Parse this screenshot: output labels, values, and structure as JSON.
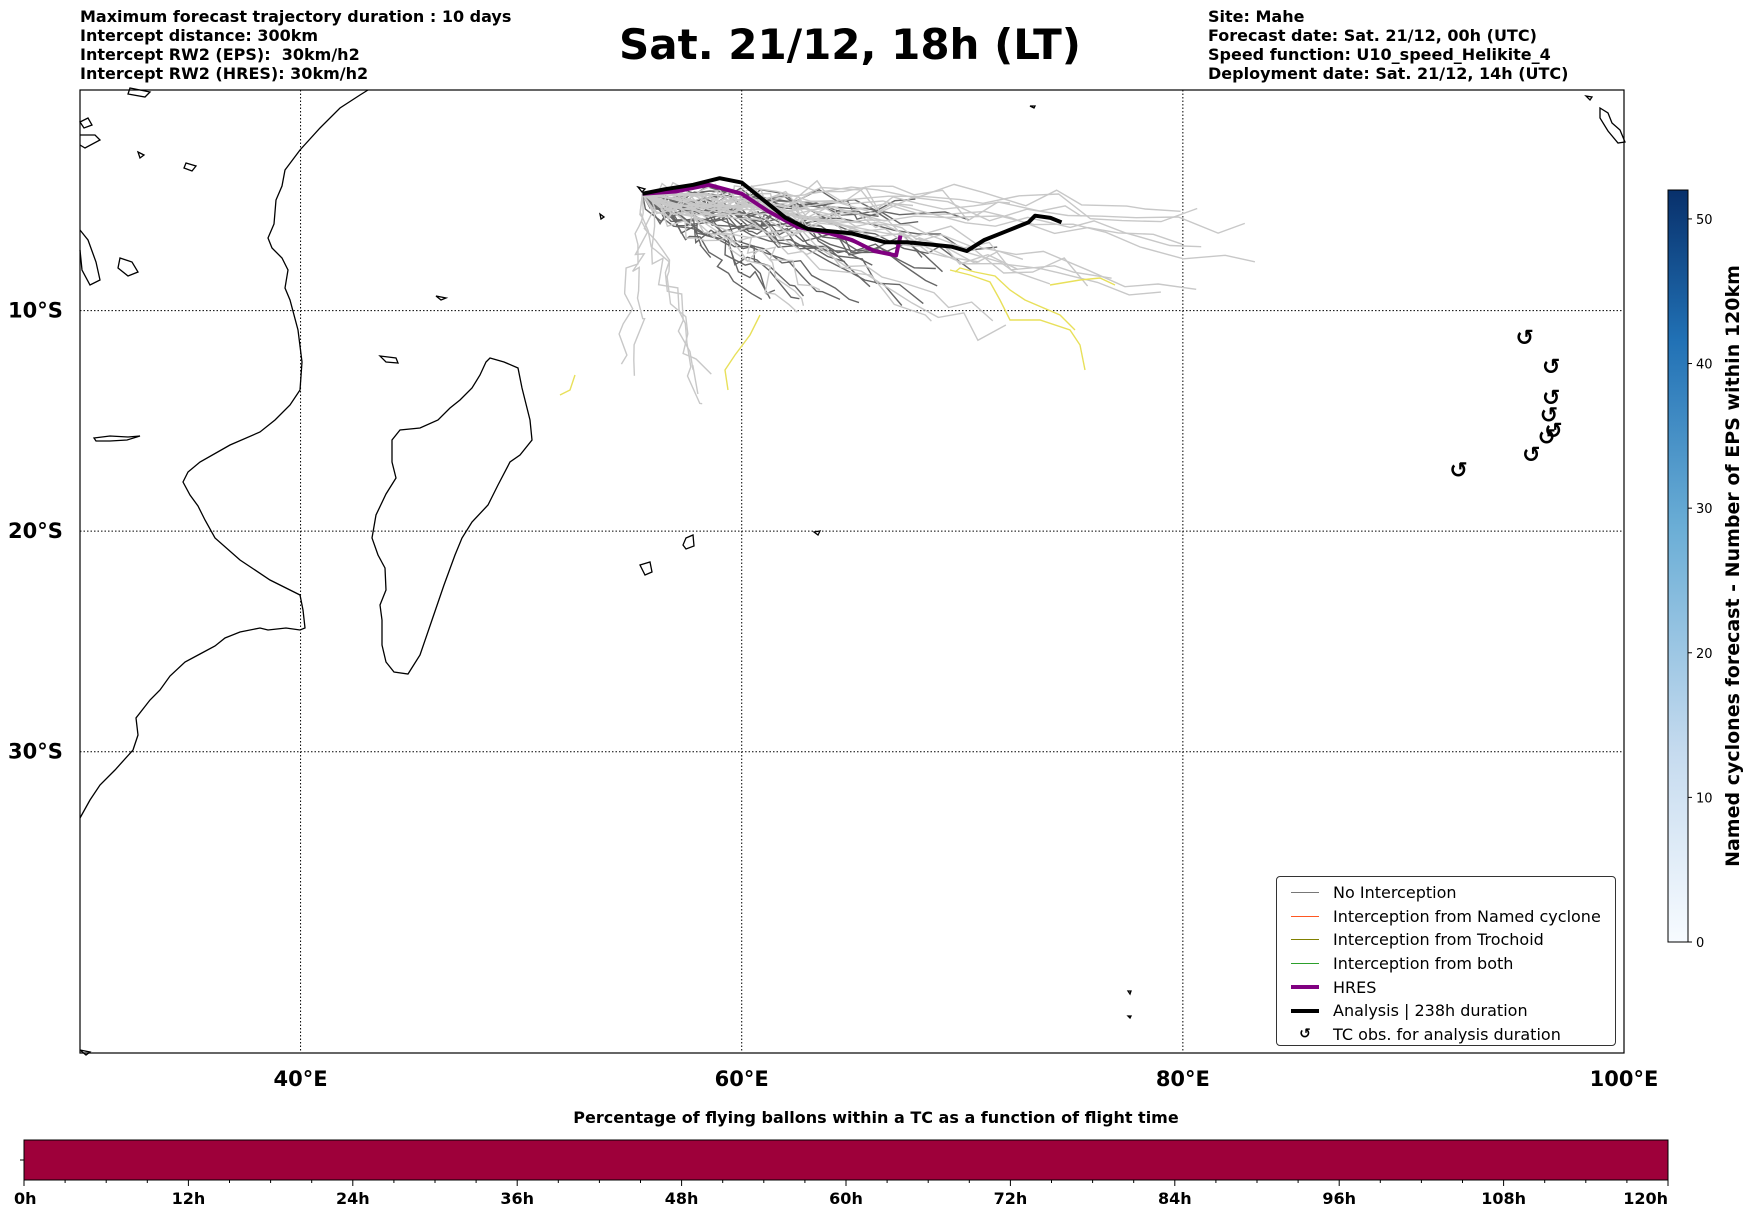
{
  "header": {
    "title": "Sat. 21/12, 18h (LT)",
    "left_lines": [
      "Maximum forecast trajectory duration : 10 days",
      "Intercept distance: 300km",
      "Intercept RW2 (EPS):  30km/h2",
      "Intercept RW2 (HRES): 30km/h2"
    ],
    "right_lines": [
      "Site: Mahe",
      "Forecast date: Sat. 21/12, 00h (UTC)",
      "Speed function: U10_speed_Helikite_4",
      "Deployment date: Sat. 21/12, 14h (UTC)"
    ]
  },
  "map": {
    "lon_ticks": [
      "40°E",
      "60°E",
      "80°E",
      "100°E"
    ],
    "lat_ticks": [
      "10°S",
      "20°S",
      "30°S"
    ],
    "lon_range": [
      30,
      100
    ],
    "lat_range": [
      -43.7,
      0
    ],
    "gridlines": true
  },
  "legend": {
    "items": [
      {
        "label": "No Interception",
        "color": "#777777",
        "style": "thin"
      },
      {
        "label": "Interception from Named cyclone",
        "color": "#ff5722",
        "style": "thin"
      },
      {
        "label": "Interception from Trochoid",
        "color": "#808000",
        "style": "thin"
      },
      {
        "label": "Interception from both",
        "color": "#2ca02c",
        "style": "thin"
      },
      {
        "label": "HRES",
        "color": "#800080",
        "style": "thick"
      },
      {
        "label": "Analysis | 238h duration",
        "color": "#000000",
        "style": "thick"
      },
      {
        "label": "TC obs. for analysis duration",
        "color": "#000000",
        "style": "symbol",
        "symbol": "↺"
      }
    ]
  },
  "colorbar": {
    "label": "Named cyclones forecast - Number of EPS within 120km",
    "ticks": [
      "0",
      "10",
      "20",
      "30",
      "40",
      "50"
    ],
    "range": [
      0,
      52
    ],
    "colors": [
      "#f7fbff",
      "#c6dbef",
      "#6baed6",
      "#2171b5",
      "#08306b"
    ]
  },
  "timebar": {
    "title": "Percentage of flying ballons within a TC as a function of flight time",
    "ticks": [
      "0h",
      "12h",
      "24h",
      "36h",
      "48h",
      "60h",
      "72h",
      "84h",
      "96h",
      "108h",
      "120h"
    ],
    "fill_color": "#9e003a",
    "fill_fraction": 1.0
  },
  "chart_data": {
    "type": "map",
    "hres_track": [
      [
        55.5,
        -4.7
      ],
      [
        57,
        -4.6
      ],
      [
        58.5,
        -4.3
      ],
      [
        60,
        -4.7
      ],
      [
        61.2,
        -5.5
      ],
      [
        62.5,
        -6.2
      ],
      [
        64,
        -6.5
      ],
      [
        65,
        -6.8
      ],
      [
        66,
        -7.3
      ],
      [
        67,
        -7.5
      ],
      [
        67.2,
        -6.6
      ]
    ],
    "analysis_track": [
      [
        55.5,
        -4.7
      ],
      [
        56.5,
        -4.5
      ],
      [
        57.8,
        -4.3
      ],
      [
        59,
        -4.0
      ],
      [
        60,
        -4.2
      ],
      [
        61,
        -5.0
      ],
      [
        62,
        -5.8
      ],
      [
        63,
        -6.3
      ],
      [
        64,
        -6.4
      ],
      [
        65,
        -6.5
      ],
      [
        66.5,
        -6.9
      ],
      [
        67.5,
        -6.9
      ],
      [
        68.5,
        -7.0
      ],
      [
        69.5,
        -7.1
      ],
      [
        70.2,
        -7.3
      ],
      [
        71,
        -6.8
      ],
      [
        72,
        -6.4
      ],
      [
        73,
        -6.0
      ],
      [
        73.3,
        -5.7
      ],
      [
        74,
        -5.8
      ],
      [
        74.5,
        -6.0
      ]
    ],
    "tc_obs": [
      [
        92.5,
        -17.3
      ],
      [
        95.5,
        -11.3
      ],
      [
        95.8,
        -16.6
      ],
      [
        96.5,
        -15.8
      ],
      [
        96.6,
        -14.8
      ],
      [
        96.7,
        -14.0
      ],
      [
        96.7,
        -12.6
      ],
      [
        96.8,
        -15.5
      ]
    ]
  }
}
